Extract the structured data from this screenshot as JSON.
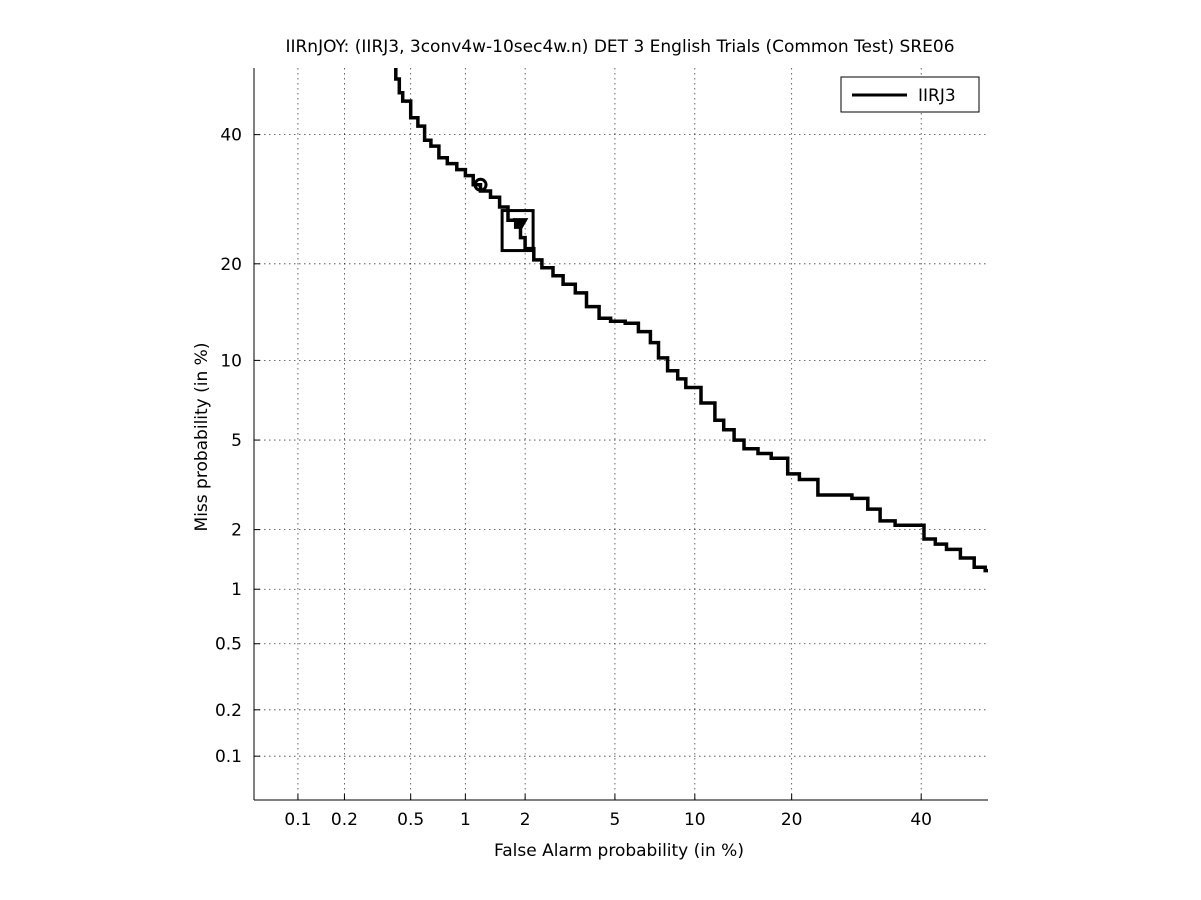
{
  "chart_data": {
    "type": "line",
    "title": "IIRnJOY: (IIRJ3, 3conv4w-10sec4w.n) DET 3 English Trials (Common Test) SRE06",
    "xlabel": "False Alarm probability (in %)",
    "ylabel": "Miss probability (in %)",
    "x_scale": "probit",
    "y_scale": "probit",
    "xlim": [
      0.05,
      52
    ],
    "ylim": [
      0.05,
      52
    ],
    "xticks": [
      0.1,
      0.2,
      0.5,
      1,
      2,
      5,
      10,
      20,
      40
    ],
    "xtick_labels": [
      "0.1",
      "0.2",
      "0.5",
      "1",
      "2",
      "5",
      "10",
      "20",
      "40"
    ],
    "yticks": [
      0.1,
      0.2,
      0.5,
      1,
      2,
      5,
      10,
      20,
      40
    ],
    "ytick_labels": [
      "0.1",
      "0.2",
      "0.5",
      "1",
      "2",
      "5",
      "10",
      "20",
      "40"
    ],
    "grid": true,
    "legend_position": "top-right",
    "series": [
      {
        "name": "IIRJ3",
        "color": "#000000",
        "points": [
          [
            0.41,
            52
          ],
          [
            0.43,
            50
          ],
          [
            0.45,
            47.5
          ],
          [
            0.5,
            46
          ],
          [
            0.55,
            43
          ],
          [
            0.6,
            41.5
          ],
          [
            0.65,
            39
          ],
          [
            0.72,
            38
          ],
          [
            0.8,
            36
          ],
          [
            0.9,
            35
          ],
          [
            1.0,
            34
          ],
          [
            1.1,
            33
          ],
          [
            1.2,
            31.5
          ],
          [
            1.35,
            30.5
          ],
          [
            1.5,
            29.5
          ],
          [
            1.65,
            28
          ],
          [
            1.8,
            26
          ],
          [
            1.9,
            25
          ],
          [
            2.0,
            23.5
          ],
          [
            2.2,
            22
          ],
          [
            2.4,
            20.5
          ],
          [
            2.7,
            19.5
          ],
          [
            3.0,
            18.5
          ],
          [
            3.4,
            17.5
          ],
          [
            3.8,
            16.5
          ],
          [
            4.3,
            15
          ],
          [
            4.8,
            13.8
          ],
          [
            5.5,
            13.5
          ],
          [
            6.2,
            13.3
          ],
          [
            6.9,
            12.5
          ],
          [
            7.4,
            11.5
          ],
          [
            8.0,
            10.2
          ],
          [
            8.7,
            9.2
          ],
          [
            9.3,
            8.6
          ],
          [
            10.5,
            8.0
          ],
          [
            11.7,
            7.0
          ],
          [
            12.5,
            6.0
          ],
          [
            13.5,
            5.5
          ],
          [
            14.5,
            5.0
          ],
          [
            16.0,
            4.6
          ],
          [
            17.5,
            4.4
          ],
          [
            19.5,
            4.2
          ],
          [
            21.0,
            3.6
          ],
          [
            23.5,
            3.4
          ],
          [
            26.5,
            2.9
          ],
          [
            28.5,
            2.9
          ],
          [
            31.0,
            2.8
          ],
          [
            33.0,
            2.5
          ],
          [
            35.5,
            2.2
          ],
          [
            38.0,
            2.1
          ],
          [
            40.5,
            2.1
          ],
          [
            42.5,
            1.8
          ],
          [
            44.5,
            1.7
          ],
          [
            47.0,
            1.6
          ],
          [
            49.5,
            1.45
          ],
          [
            51.5,
            1.3
          ],
          [
            52,
            1.25
          ]
        ]
      }
    ],
    "markers": [
      {
        "name": "min-dcf-circle",
        "shape": "circle",
        "x": 1.2,
        "y": 31.5
      },
      {
        "name": "actual-dcf-box",
        "shape": "square",
        "x": 1.85,
        "y": 24.5
      },
      {
        "name": "eer-triangle",
        "shape": "triangle",
        "x": 1.9,
        "y": 25.5
      }
    ]
  }
}
